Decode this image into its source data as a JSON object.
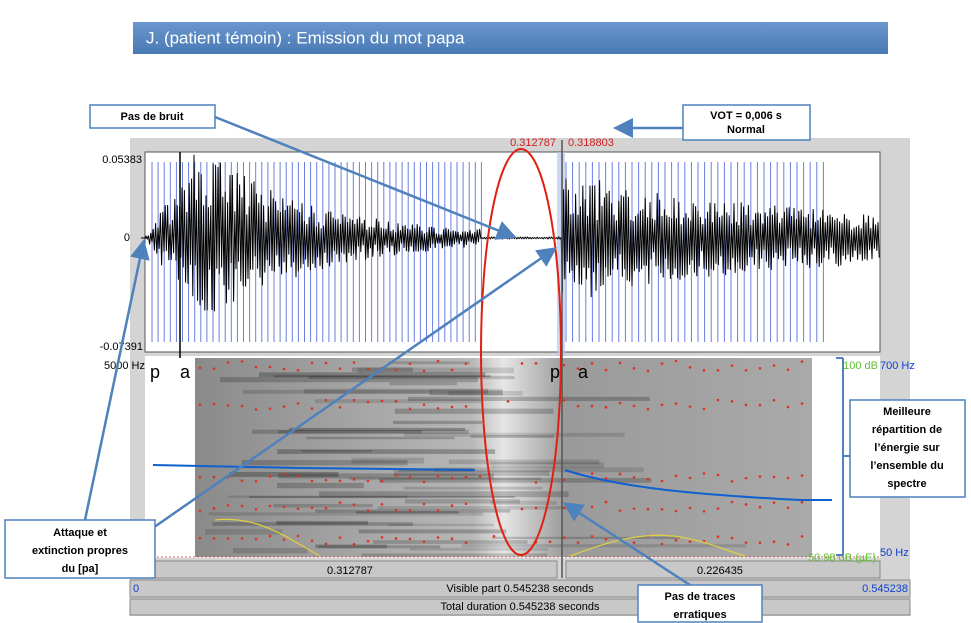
{
  "title": "J. (patient témoin) : Emission du mot papa",
  "callouts": {
    "no_noise": "Pas de bruit",
    "vot": [
      "VOT = 0,006 s",
      "Normal"
    ],
    "energy": [
      "Meilleure",
      "répartition de",
      "l’énergie sur",
      "l’ensemble du",
      "spectre"
    ],
    "attack": [
      "Attaque et",
      "extinction propres",
      "du [pa]"
    ],
    "traces": [
      "Pas de traces",
      "erratiques"
    ]
  },
  "praat": {
    "amp_max": "0.05383",
    "amp_zero": "0",
    "amp_min": "-0.07391",
    "freq_max": "5000 Hz",
    "cursor_left": "0.312787",
    "cursor_right": "0.318803",
    "db_max": "100 dB",
    "pitch_max": "700 Hz",
    "db_min": "50.98 dB (µE)",
    "pitch_min": "50 Hz",
    "segment_left": "0.312787",
    "segment_right": "0.226435",
    "visible_start": "0",
    "visible_part": "Visible part 0.545238 seconds",
    "visible_end": "0.545238",
    "total_duration": "Total duration 0.545238 seconds",
    "phonemes": [
      "p",
      "a",
      "p",
      "a"
    ]
  }
}
